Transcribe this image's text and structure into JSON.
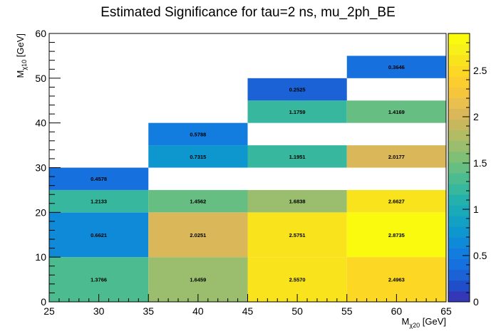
{
  "chart_data": {
    "type": "heatmap",
    "title": "Estimated Significance for tau=2 ns, mu_2ph_BE",
    "xlabel": {
      "main": "M",
      "sub": "χ20",
      "unit": " [GeV]"
    },
    "ylabel": {
      "main": "M",
      "sub": "χ10",
      "unit": " [GeV]"
    },
    "xlim": [
      25,
      65
    ],
    "ylim": [
      0,
      60
    ],
    "zlim": [
      0,
      2.9
    ],
    "x_ticks": [
      "25",
      "30",
      "35",
      "40",
      "45",
      "50",
      "55",
      "60",
      "65"
    ],
    "y_ticks": [
      "0",
      "10",
      "20",
      "30",
      "40",
      "50",
      "60"
    ],
    "z_ticks": [
      "0",
      "0.5",
      "1",
      "1.5",
      "2",
      "2.5"
    ],
    "cells": [
      {
        "x": [
          25,
          35
        ],
        "y": [
          0,
          10
        ],
        "value": 1.3766,
        "label": "1.3766"
      },
      {
        "x": [
          35,
          45
        ],
        "y": [
          0,
          10
        ],
        "value": 1.6459,
        "label": "1.6459"
      },
      {
        "x": [
          45,
          55
        ],
        "y": [
          0,
          10
        ],
        "value": 2.557,
        "label": "2.5570"
      },
      {
        "x": [
          55,
          65
        ],
        "y": [
          0,
          10
        ],
        "value": 2.4963,
        "label": "2.4963"
      },
      {
        "x": [
          25,
          35
        ],
        "y": [
          10,
          20
        ],
        "value": 0.6621,
        "label": "0.6621"
      },
      {
        "x": [
          35,
          45
        ],
        "y": [
          10,
          20
        ],
        "value": 2.0251,
        "label": "2.0251"
      },
      {
        "x": [
          45,
          55
        ],
        "y": [
          10,
          20
        ],
        "value": 2.5751,
        "label": "2.5751"
      },
      {
        "x": [
          55,
          65
        ],
        "y": [
          10,
          20
        ],
        "value": 2.8735,
        "label": "2.8735"
      },
      {
        "x": [
          25,
          35
        ],
        "y": [
          20,
          25
        ],
        "value": 1.2133,
        "label": "1.2133"
      },
      {
        "x": [
          35,
          45
        ],
        "y": [
          20,
          25
        ],
        "value": 1.4562,
        "label": "1.4562"
      },
      {
        "x": [
          45,
          55
        ],
        "y": [
          20,
          25
        ],
        "value": 1.6838,
        "label": "1.6838"
      },
      {
        "x": [
          55,
          65
        ],
        "y": [
          20,
          25
        ],
        "value": 2.6627,
        "label": "2.6627"
      },
      {
        "x": [
          25,
          35
        ],
        "y": [
          25,
          30
        ],
        "value": 0.4578,
        "label": "0.4578"
      },
      {
        "x": [
          35,
          45
        ],
        "y": [
          30,
          35
        ],
        "value": 0.7315,
        "label": "0.7315"
      },
      {
        "x": [
          45,
          55
        ],
        "y": [
          30,
          35
        ],
        "value": 1.1951,
        "label": "1.1951"
      },
      {
        "x": [
          55,
          65
        ],
        "y": [
          30,
          35
        ],
        "value": 2.0177,
        "label": "2.0177"
      },
      {
        "x": [
          35,
          45
        ],
        "y": [
          35,
          40
        ],
        "value": 0.5788,
        "label": "0.5788"
      },
      {
        "x": [
          45,
          55
        ],
        "y": [
          40,
          45
        ],
        "value": 1.1759,
        "label": "1.1759"
      },
      {
        "x": [
          55,
          65
        ],
        "y": [
          40,
          45
        ],
        "value": 1.4169,
        "label": "1.4169"
      },
      {
        "x": [
          45,
          55
        ],
        "y": [
          45,
          50
        ],
        "value": 0.2525,
        "label": "0.2525"
      },
      {
        "x": [
          55,
          65
        ],
        "y": [
          50,
          55
        ],
        "value": 0.3646,
        "label": "0.3646"
      }
    ],
    "palette": [
      "#3538b6",
      "#1f4ec8",
      "#1b62d6",
      "#1670de",
      "#127cdf",
      "#0f8ad8",
      "#0e96cf",
      "#12a0c4",
      "#1aa9b8",
      "#24b0ac",
      "#37b89e",
      "#4dbb90",
      "#66be82",
      "#80bf76",
      "#9abe6d",
      "#b2bc64",
      "#c7b85e",
      "#dab85a",
      "#e9bf4e",
      "#f5c63c",
      "#fbcd2e",
      "#fcd825",
      "#f9e31c",
      "#f8f01a",
      "#f9fa0e"
    ],
    "grid": false,
    "legend": "colorbar-right"
  }
}
